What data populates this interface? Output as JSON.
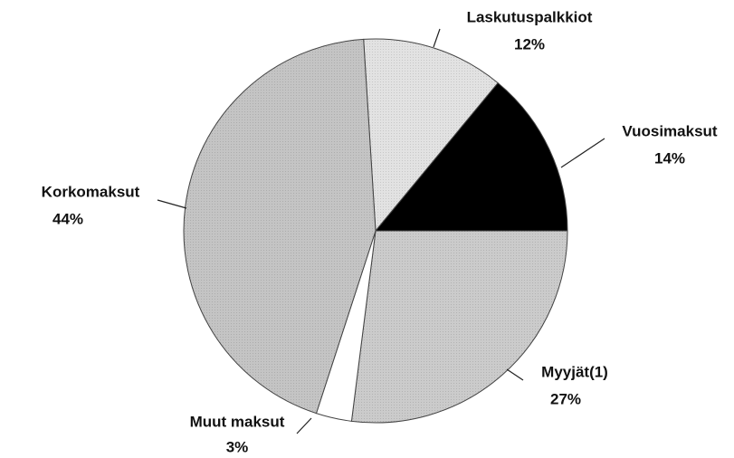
{
  "chart_data": {
    "type": "pie",
    "categories": [
      "Laskutuspalkkiot",
      "Vuosimaksut",
      "Myyjät(1)",
      "Muut maksut",
      "Korkomaksut"
    ],
    "values": [
      12,
      14,
      27,
      3,
      44
    ],
    "value_labels": [
      "12%",
      "14%",
      "27%",
      "3%",
      "44%"
    ],
    "colors": [
      "#e2e2e2",
      "#000000",
      "#cbcbcb",
      "#ffffff",
      "#c4c4c4"
    ]
  }
}
